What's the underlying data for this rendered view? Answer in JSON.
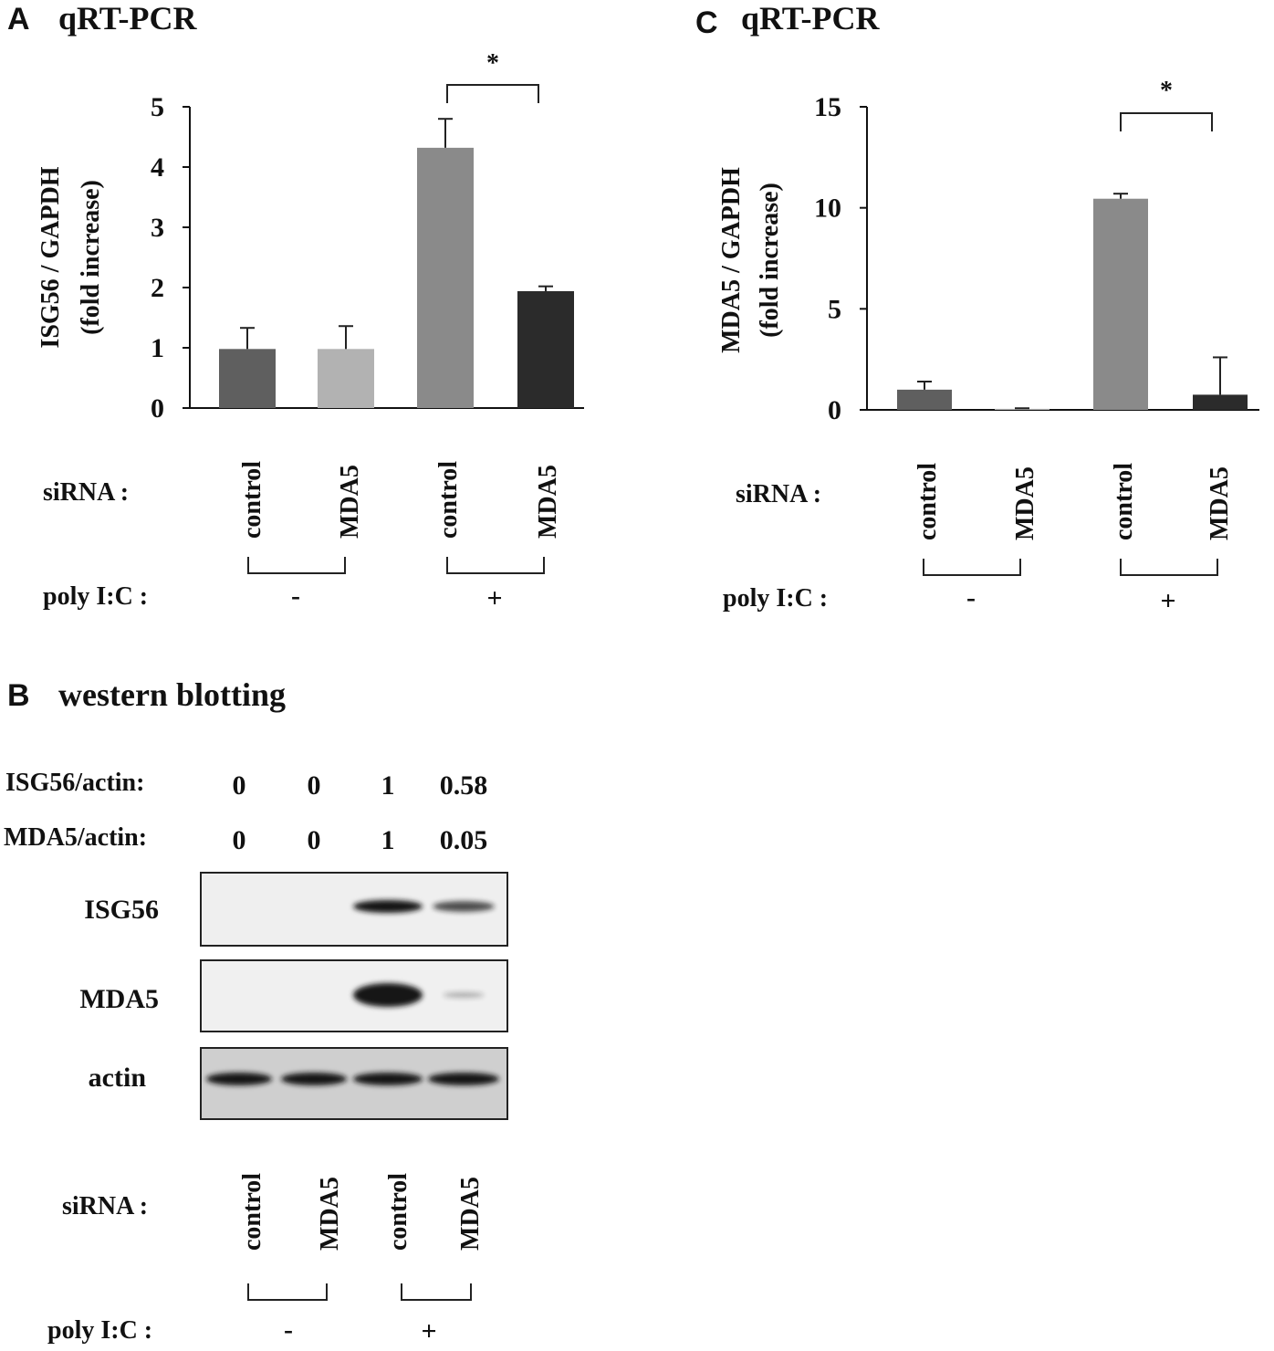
{
  "panels": {
    "a": {
      "letter": "A",
      "title": "qRT-PCR"
    },
    "b": {
      "letter": "B",
      "title": "western blotting"
    },
    "c": {
      "letter": "C",
      "title": "qRT-PCR"
    }
  },
  "labels": {
    "sirna": "siRNA :",
    "polyic": "poly I:C :",
    "minus": "-",
    "plus": "+",
    "star": "*"
  },
  "chart_data": [
    {
      "type": "bar",
      "panel": "A",
      "title": "qRT-PCR",
      "ylabel_line1": "ISG56 / GAPDH",
      "ylabel_line2": "(fold increase)",
      "ylim": [
        0,
        5
      ],
      "yticks": [
        "0",
        "1",
        "2",
        "3",
        "4",
        "5"
      ],
      "categories": [
        "control",
        "MDA5",
        "control",
        "MDA5"
      ],
      "groups": [
        "-",
        "+"
      ],
      "values": [
        0.98,
        0.98,
        4.32,
        1.94
      ],
      "errors": [
        0.35,
        0.38,
        0.48,
        0.08
      ],
      "colors": [
        "#5f5f5f",
        "#b2b2b2",
        "#8a8a8a",
        "#2b2b2b"
      ],
      "significance": "*"
    },
    {
      "type": "bar",
      "panel": "C",
      "title": "qRT-PCR",
      "ylabel_line1": "MDA5 / GAPDH",
      "ylabel_line2": "(fold increase)",
      "ylim": [
        0,
        15
      ],
      "yticks": [
        "0",
        "5",
        "10",
        "15"
      ],
      "categories": [
        "control",
        "MDA5",
        "control",
        "MDA5"
      ],
      "groups": [
        "-",
        "+"
      ],
      "values": [
        1.0,
        0.05,
        10.45,
        0.75
      ],
      "errors": [
        0.4,
        0.03,
        0.25,
        1.85
      ],
      "colors": [
        "#5f5f5f",
        "#b2b2b2",
        "#8a8a8a",
        "#2b2b2b"
      ],
      "significance": "*"
    }
  ],
  "western": {
    "quant_rows": [
      {
        "label": "ISG56/actin:",
        "values": [
          "0",
          "0",
          "1",
          "0.58"
        ]
      },
      {
        "label": "MDA5/actin:",
        "values": [
          "0",
          "0",
          "1",
          "0.05"
        ]
      }
    ],
    "blots": [
      {
        "label": "ISG56",
        "intensity": [
          0,
          0,
          1,
          0.58
        ]
      },
      {
        "label": "MDA5",
        "intensity": [
          0,
          0,
          1,
          0.05
        ]
      },
      {
        "label": "actin",
        "intensity": [
          1,
          1,
          1,
          1
        ]
      }
    ],
    "lanes": [
      "control",
      "MDA5",
      "control",
      "MDA5"
    ]
  }
}
